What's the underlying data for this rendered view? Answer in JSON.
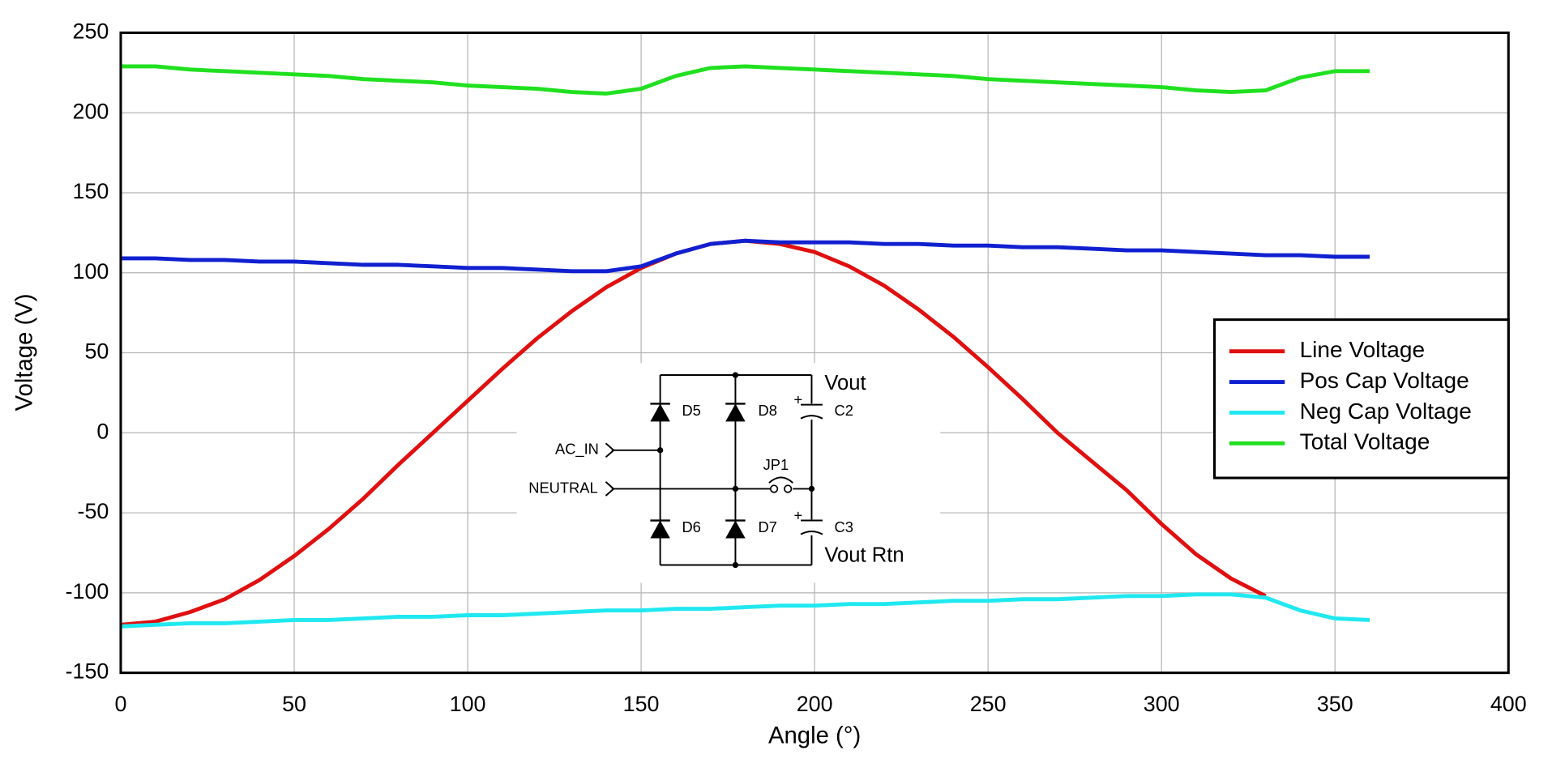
{
  "chart_data": {
    "type": "line",
    "xlabel": "Angle (°)",
    "ylabel": "Voltage (V)",
    "x": [
      0,
      10,
      20,
      30,
      40,
      50,
      60,
      70,
      80,
      90,
      100,
      110,
      120,
      130,
      140,
      150,
      160,
      170,
      180,
      190,
      200,
      210,
      220,
      230,
      240,
      250,
      260,
      270,
      280,
      290,
      300,
      310,
      320,
      330,
      340,
      350,
      360
    ],
    "series": [
      {
        "name": "Line Voltage",
        "color": "#e01010",
        "values": [
          -120,
          -118,
          -112,
          -104,
          -92,
          -77,
          -60,
          -41,
          -20,
          0,
          20,
          40,
          59,
          76,
          91,
          103,
          112,
          118,
          120,
          118,
          113,
          104,
          92,
          77,
          60,
          41,
          21,
          0,
          -18,
          -36,
          -57,
          -76,
          -91,
          -102,
          null,
          null,
          null
        ]
      },
      {
        "name": "Pos Cap Voltage",
        "color": "#1020d0",
        "values": [
          109,
          109,
          108,
          108,
          107,
          107,
          106,
          105,
          105,
          104,
          103,
          103,
          102,
          101,
          101,
          104,
          112,
          118,
          120,
          119,
          119,
          119,
          118,
          118,
          117,
          117,
          116,
          116,
          115,
          114,
          114,
          113,
          112,
          111,
          111,
          110,
          110
        ]
      },
      {
        "name": "Neg Cap Voltage",
        "color": "#20e8f0",
        "values": [
          -121,
          -120,
          -119,
          -119,
          -118,
          -117,
          -117,
          -116,
          -115,
          -115,
          -114,
          -114,
          -113,
          -112,
          -111,
          -111,
          -110,
          -110,
          -109,
          -108,
          -108,
          -107,
          -107,
          -106,
          -105,
          -105,
          -104,
          -104,
          -103,
          -102,
          -102,
          -101,
          -101,
          -103,
          -111,
          -116,
          -117
        ]
      },
      {
        "name": "Total Voltage",
        "color": "#20e020",
        "values": [
          229,
          229,
          227,
          226,
          225,
          224,
          223,
          221,
          220,
          219,
          217,
          216,
          215,
          213,
          212,
          215,
          223,
          228,
          229,
          228,
          227,
          226,
          225,
          224,
          223,
          221,
          220,
          219,
          218,
          217,
          216,
          214,
          213,
          214,
          222,
          226,
          226
        ]
      }
    ],
    "xlim": [
      0,
      400
    ],
    "xticks": [
      0,
      50,
      100,
      150,
      200,
      250,
      300,
      350,
      400
    ],
    "ylim": [
      -150,
      250
    ],
    "yticks": [
      -150,
      -100,
      -50,
      0,
      50,
      100,
      150,
      200,
      250
    ],
    "grid": true,
    "legend": "right",
    "inset_labels": [
      "D5",
      "D8",
      "Vout",
      "C2",
      "AC_IN",
      "JP1",
      "NEUTRAL",
      "D6",
      "D7",
      "C3",
      "Vout Rtn",
      "+",
      "+"
    ]
  }
}
